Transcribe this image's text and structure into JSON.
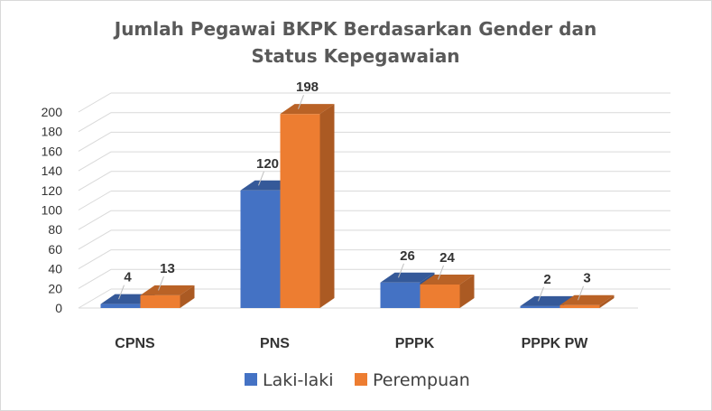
{
  "chart_data": {
    "type": "bar",
    "title_lines": [
      "Jumlah Pegawai BKPK Berdasarkan Gender dan",
      "Status Kepegawaian"
    ],
    "categories": [
      "CPNS",
      "PNS",
      "PPPK",
      "PPPK PW"
    ],
    "series": [
      {
        "name": "Laki-laki",
        "values": [
          4,
          120,
          26,
          2
        ],
        "color": "#4472c4"
      },
      {
        "name": "Perempuan",
        "values": [
          13,
          198,
          24,
          3
        ],
        "color": "#ed7d31"
      }
    ],
    "y_ticks": [
      "0",
      "20",
      "40",
      "60",
      "80",
      "100",
      "120",
      "140",
      "160",
      "180",
      "200"
    ],
    "ylim": [
      0,
      200
    ],
    "grid": true,
    "three_d": true,
    "legend_position": "bottom"
  }
}
